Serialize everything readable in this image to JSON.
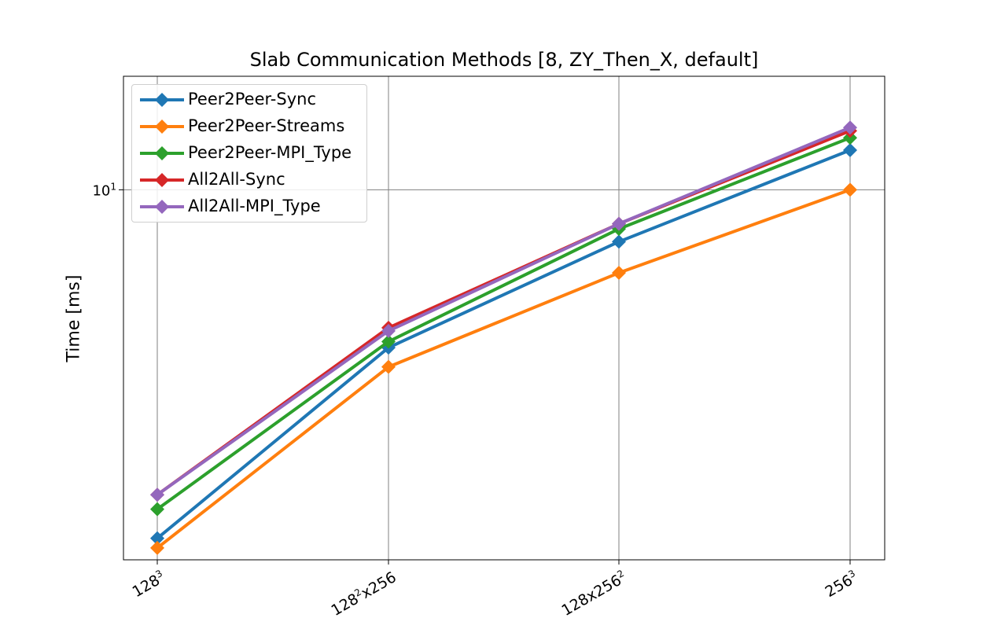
{
  "chart_data": {
    "type": "line",
    "title": "Slab Communication Methods [8, ZY_Then_X, default]",
    "xlabel": "",
    "ylabel": "Time [ms]",
    "categories": [
      {
        "base": "128",
        "exp": "3",
        "rest": ""
      },
      {
        "base": "128",
        "exp": "2",
        "rest": "x256"
      },
      {
        "base": "128x256",
        "exp": "2",
        "rest": ""
      },
      {
        "base": "256",
        "exp": "3",
        "rest": ""
      }
    ],
    "yscale": "log",
    "ylim": [
      3.5,
      13.8
    ],
    "yticks": [
      {
        "value": 10,
        "base": "10",
        "exp": "1"
      }
    ],
    "grid": true,
    "legend_position": "top-left",
    "marker": "diamond",
    "series": [
      {
        "name": "Peer2Peer-Sync",
        "color": "#1f77b4",
        "values": [
          3.72,
          6.39,
          8.63,
          11.19
        ]
      },
      {
        "name": "Peer2Peer-Streams",
        "color": "#ff7f0e",
        "values": [
          3.62,
          6.05,
          7.9,
          10.0
        ]
      },
      {
        "name": "Peer2Peer-MPI_Type",
        "color": "#2ca02c",
        "values": [
          4.04,
          6.5,
          8.95,
          11.59
        ]
      },
      {
        "name": "All2All-Sync",
        "color": "#d62728",
        "values": [
          4.21,
          6.76,
          9.08,
          11.82
        ]
      },
      {
        "name": "All2All-MPI_Type",
        "color": "#9467bd",
        "values": [
          4.21,
          6.7,
          9.08,
          11.93
        ]
      }
    ]
  }
}
